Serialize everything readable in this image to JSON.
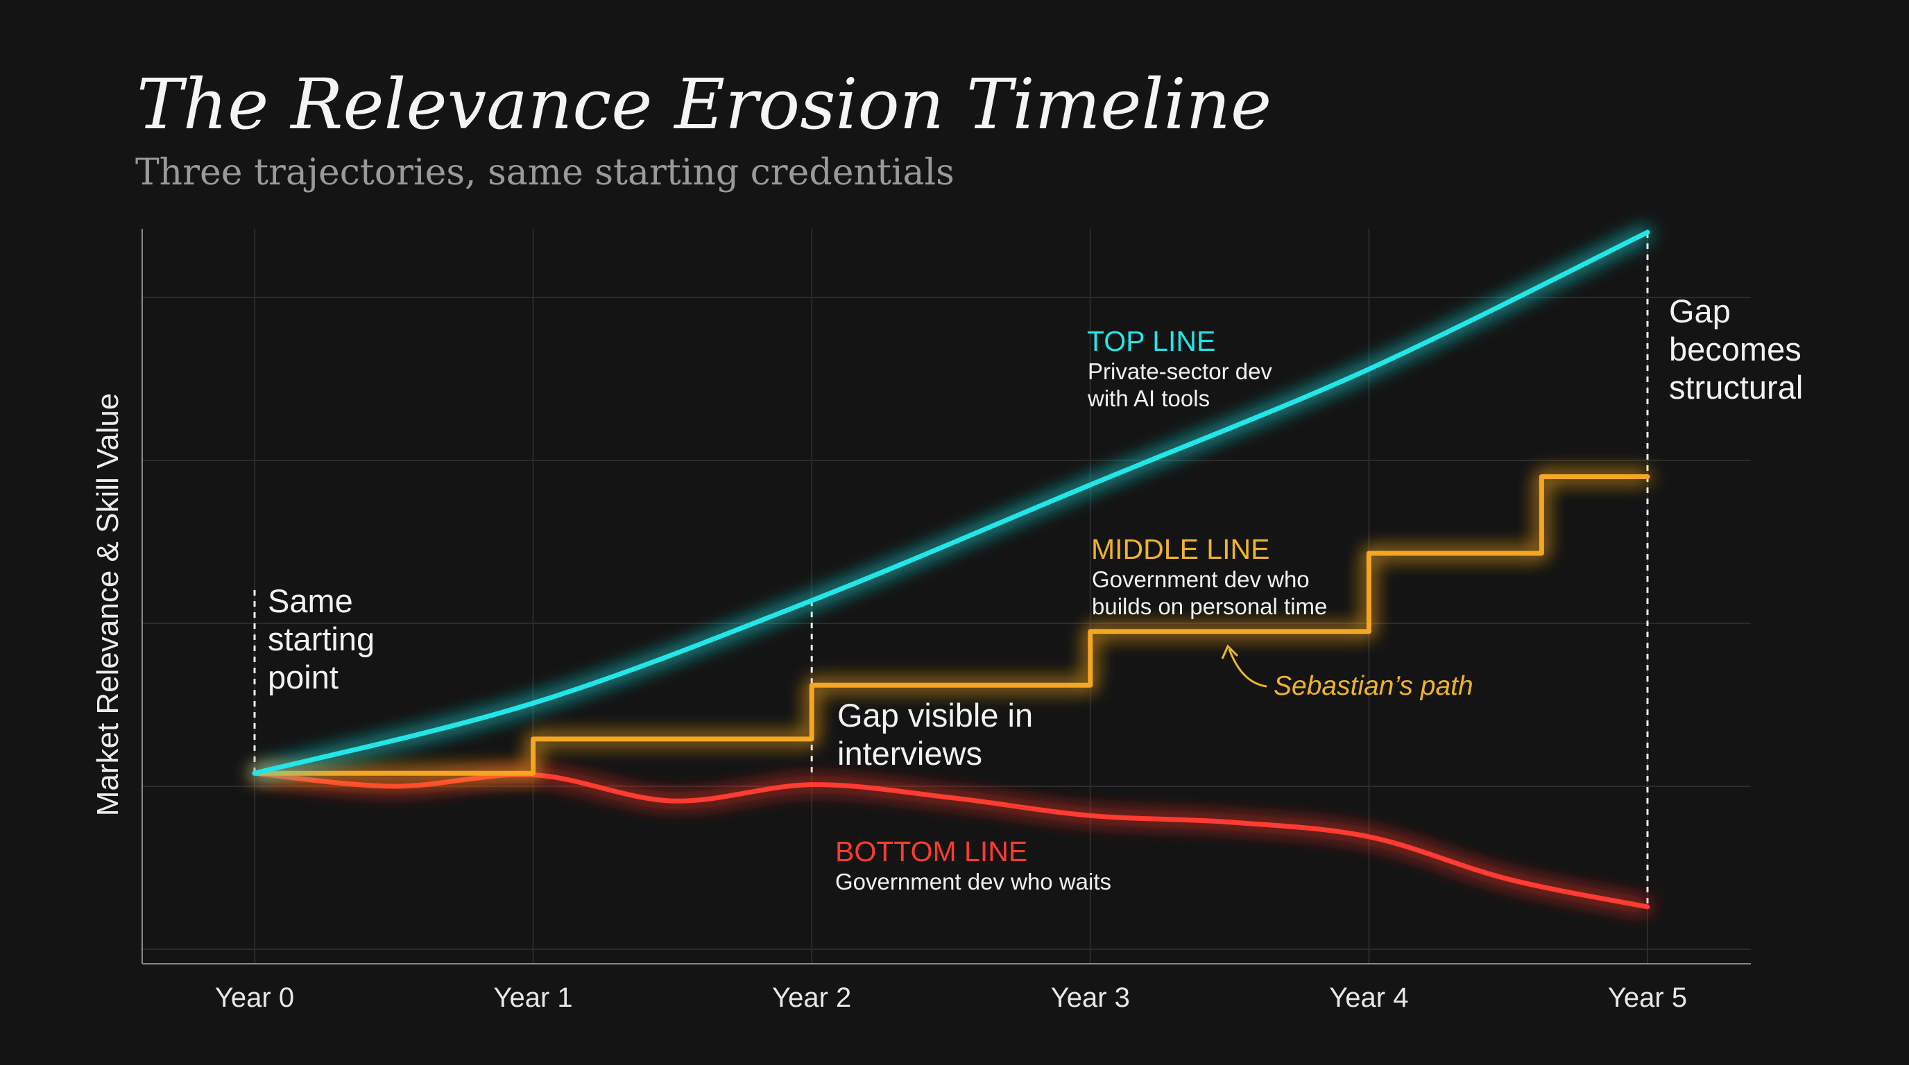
{
  "chart_data": {
    "type": "line",
    "title": "The Relevance Erosion Timeline",
    "subtitle": "Three trajectories, same starting credentials",
    "xlabel": "",
    "ylabel": "Market Relevance & Skill Value",
    "categories": [
      "Year 0",
      "Year 1",
      "Year 2",
      "Year 3",
      "Year 4",
      "Year 5"
    ],
    "xlim": [
      0,
      5
    ],
    "ylim": [
      0,
      4.6
    ],
    "grid": true,
    "y_tick_labels_shown": false,
    "series": [
      {
        "key": "top",
        "name": "TOP LINE",
        "description": "Private-sector dev with AI tools",
        "description_lines": [
          "Private-sector dev",
          "with AI tools"
        ],
        "color": "#22e6e8",
        "shape": "smooth",
        "x": [
          0,
          1,
          2,
          3,
          4,
          5
        ],
        "y": [
          1.08,
          1.51,
          2.14,
          2.85,
          3.56,
          4.4
        ]
      },
      {
        "key": "middle",
        "name": "MIDDLE LINE",
        "description_lines": [
          "Government dev who",
          "builds on personal time"
        ],
        "color": "#f5a623",
        "shape": "step",
        "x": [
          0,
          1,
          2,
          3,
          4,
          4.62,
          5
        ],
        "y": [
          1.08,
          1.29,
          1.62,
          1.95,
          2.43,
          2.9,
          2.9
        ]
      },
      {
        "key": "bottom",
        "name": "BOTTOM LINE",
        "description_lines": [
          "Government dev who waits"
        ],
        "color": "#ff3b30",
        "shape": "smooth",
        "x": [
          0,
          0.5,
          1,
          1.5,
          2,
          2.5,
          3,
          3.5,
          4,
          4.5,
          5
        ],
        "y": [
          1.08,
          1.0,
          1.07,
          0.91,
          1.01,
          0.93,
          0.82,
          0.78,
          0.69,
          0.43,
          0.26
        ]
      }
    ],
    "annotations": {
      "start": [
        "Same",
        "starting",
        "point"
      ],
      "gap_interviews": [
        "Gap visible in",
        "interviews"
      ],
      "gap_structural": [
        "Gap",
        "becomes",
        "structural"
      ],
      "sebastian": "Sebastian’s path"
    }
  }
}
